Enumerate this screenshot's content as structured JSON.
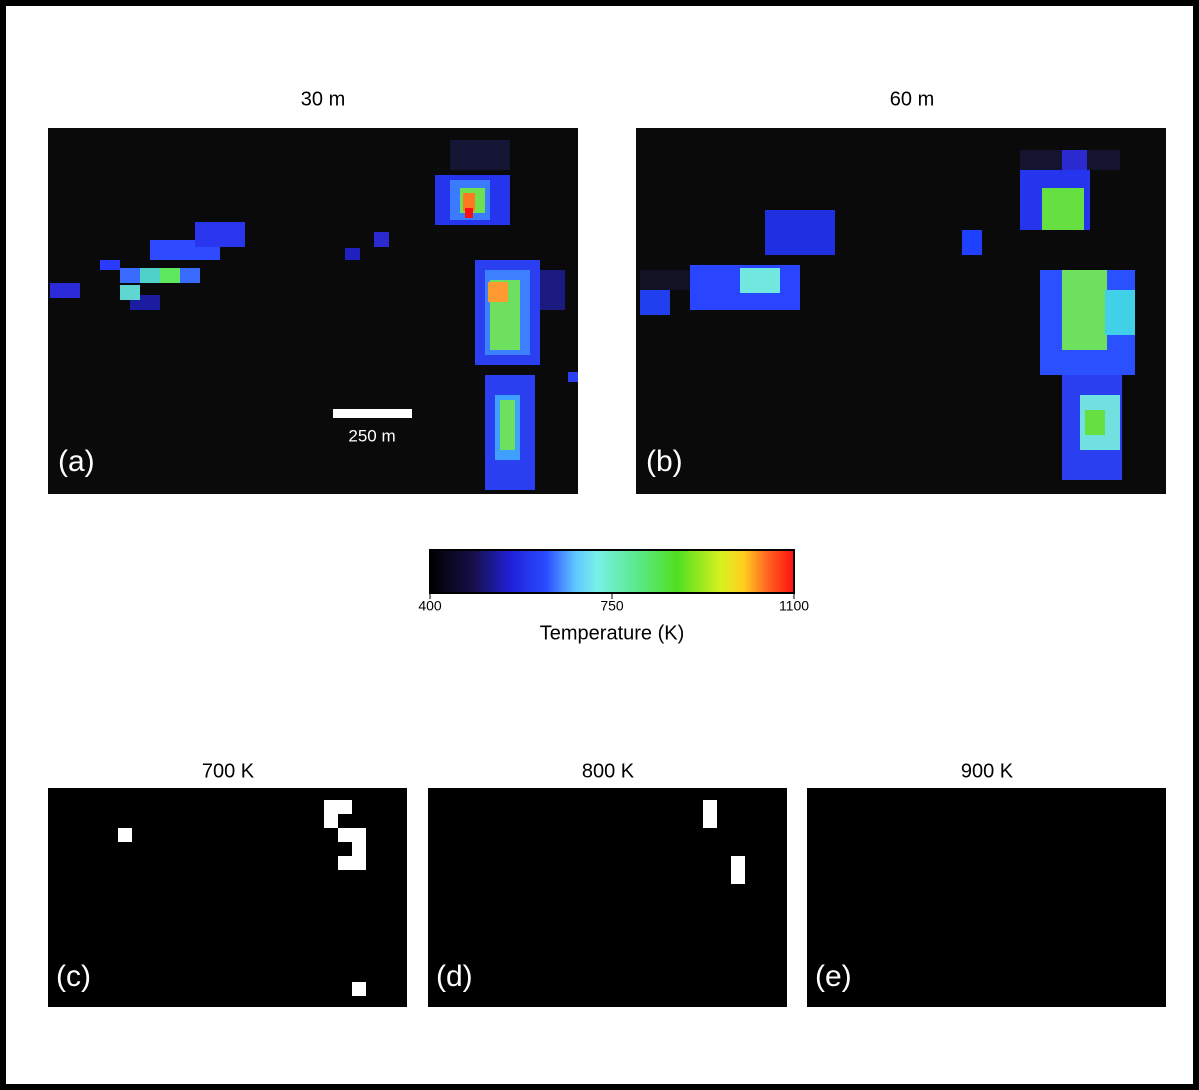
{
  "figure": {
    "panels": [
      {
        "title": "30 m",
        "label": "(a)"
      },
      {
        "title": "60 m",
        "label": "(b)"
      },
      {
        "title": "700 K",
        "label": "(c)"
      },
      {
        "title": "800 K",
        "label": "(d)"
      },
      {
        "title": "900 K",
        "label": "(e)"
      }
    ],
    "scale_bar": "250 m",
    "colorbar": {
      "label": "Temperature (K)",
      "lim": [
        400,
        1100
      ],
      "ticks": [
        400,
        750,
        1100
      ]
    }
  }
}
